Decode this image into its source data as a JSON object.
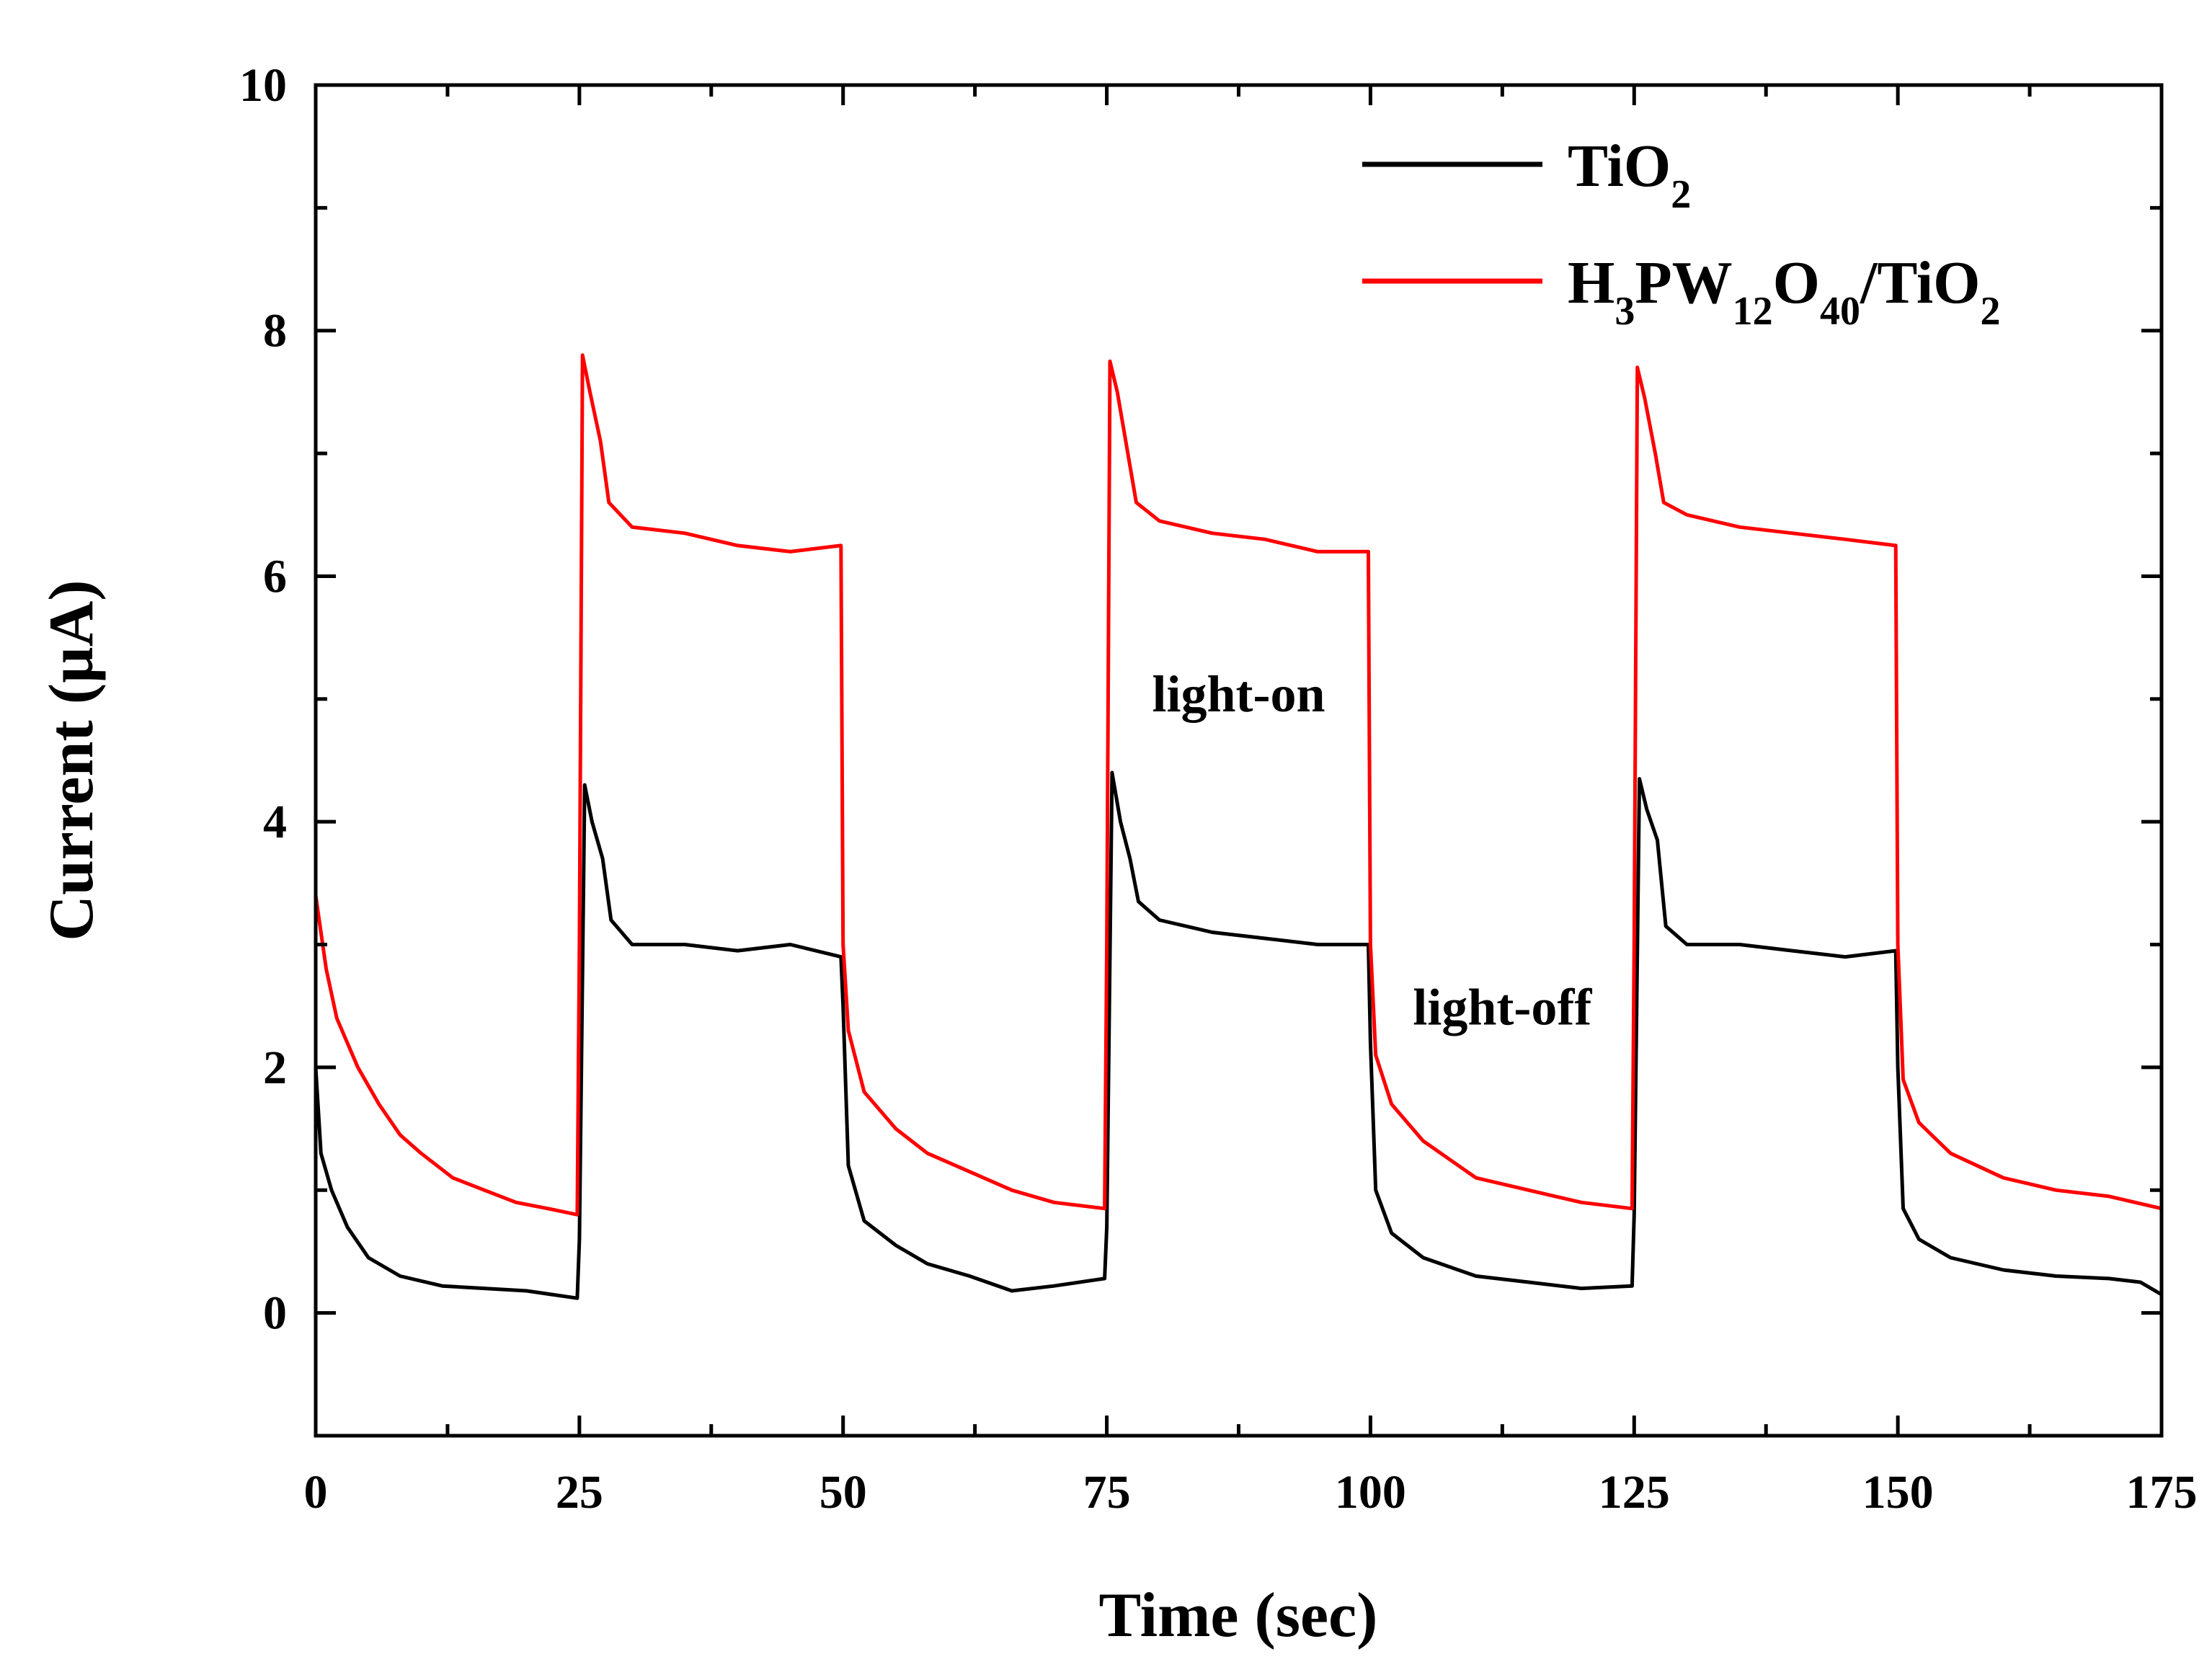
{
  "chart_data": {
    "type": "line",
    "title": "",
    "xlabel": "Time (sec)",
    "ylabel": "Current (µA)",
    "xlim": [
      0,
      175
    ],
    "ylim": [
      -1,
      10
    ],
    "x_ticks": [
      0,
      25,
      50,
      75,
      100,
      125,
      150,
      175
    ],
    "y_ticks": [
      0,
      2,
      4,
      6,
      8,
      10
    ],
    "x_minor_step": 12.5,
    "y_minor_step": 1,
    "grid": false,
    "legend_position": "top-right",
    "legend": [
      {
        "series": 0,
        "base": "TiO",
        "sub": "2"
      },
      {
        "series": 1,
        "parts": [
          {
            "t": "H"
          },
          {
            "t": "3",
            "sub": true
          },
          {
            "t": "PW"
          },
          {
            "t": "12",
            "sub": true
          },
          {
            "t": "O"
          },
          {
            "t": "40",
            "sub": true
          },
          {
            "t": "/TiO"
          },
          {
            "t": "2",
            "sub": true
          }
        ]
      }
    ],
    "annotations": [
      {
        "text": "light-on",
        "x": 87.5,
        "y": 4.9
      },
      {
        "text": "light-off",
        "x": 112.5,
        "y": 2.35
      }
    ],
    "series": [
      {
        "name": "TiO2",
        "color": "#000000",
        "points": [
          [
            0,
            2.0
          ],
          [
            0.5,
            1.3
          ],
          [
            1.5,
            1.0
          ],
          [
            3,
            0.7
          ],
          [
            5,
            0.45
          ],
          [
            8,
            0.3
          ],
          [
            12,
            0.22
          ],
          [
            16,
            0.2
          ],
          [
            20,
            0.18
          ],
          [
            24.8,
            0.12
          ],
          [
            25,
            0.6
          ],
          [
            25.5,
            4.3
          ],
          [
            26.2,
            4.0
          ],
          [
            27.2,
            3.7
          ],
          [
            28,
            3.2
          ],
          [
            30,
            3.0
          ],
          [
            35,
            3.0
          ],
          [
            40,
            2.95
          ],
          [
            45,
            3.0
          ],
          [
            49.8,
            2.9
          ],
          [
            50,
            2.5
          ],
          [
            50.5,
            1.2
          ],
          [
            52,
            0.75
          ],
          [
            55,
            0.55
          ],
          [
            58,
            0.4
          ],
          [
            62,
            0.3
          ],
          [
            66,
            0.18
          ],
          [
            70,
            0.22
          ],
          [
            74.8,
            0.28
          ],
          [
            75,
            0.7
          ],
          [
            75.5,
            4.4
          ],
          [
            76.3,
            4.0
          ],
          [
            77.2,
            3.7
          ],
          [
            78,
            3.35
          ],
          [
            80,
            3.2
          ],
          [
            85,
            3.1
          ],
          [
            90,
            3.05
          ],
          [
            95,
            3.0
          ],
          [
            99.8,
            3.0
          ],
          [
            100,
            2.2
          ],
          [
            100.5,
            1.0
          ],
          [
            102,
            0.65
          ],
          [
            105,
            0.45
          ],
          [
            110,
            0.3
          ],
          [
            115,
            0.25
          ],
          [
            120,
            0.2
          ],
          [
            124.8,
            0.22
          ],
          [
            125,
            0.8
          ],
          [
            125.5,
            4.35
          ],
          [
            126.2,
            4.1
          ],
          [
            127.2,
            3.85
          ],
          [
            128,
            3.15
          ],
          [
            130,
            3.0
          ],
          [
            135,
            3.0
          ],
          [
            140,
            2.95
          ],
          [
            145,
            2.9
          ],
          [
            149.8,
            2.95
          ],
          [
            150,
            2.0
          ],
          [
            150.5,
            0.85
          ],
          [
            152,
            0.6
          ],
          [
            155,
            0.45
          ],
          [
            160,
            0.35
          ],
          [
            165,
            0.3
          ],
          [
            170,
            0.28
          ],
          [
            173,
            0.25
          ],
          [
            175,
            0.15
          ]
        ]
      },
      {
        "name": "H3PW12O40/TiO2",
        "color": "#ff0000",
        "points": [
          [
            0,
            3.4
          ],
          [
            1,
            2.8
          ],
          [
            2,
            2.4
          ],
          [
            4,
            2.0
          ],
          [
            6,
            1.7
          ],
          [
            8,
            1.45
          ],
          [
            10,
            1.3
          ],
          [
            13,
            1.1
          ],
          [
            16,
            1.0
          ],
          [
            19,
            0.9
          ],
          [
            22,
            0.85
          ],
          [
            24.8,
            0.8
          ],
          [
            25,
            3.0
          ],
          [
            25.3,
            7.8
          ],
          [
            26,
            7.5
          ],
          [
            27,
            7.1
          ],
          [
            27.8,
            6.6
          ],
          [
            30,
            6.4
          ],
          [
            35,
            6.35
          ],
          [
            40,
            6.25
          ],
          [
            45,
            6.2
          ],
          [
            49.8,
            6.25
          ],
          [
            50,
            3.0
          ],
          [
            50.5,
            2.3
          ],
          [
            52,
            1.8
          ],
          [
            55,
            1.5
          ],
          [
            58,
            1.3
          ],
          [
            62,
            1.15
          ],
          [
            66,
            1.0
          ],
          [
            70,
            0.9
          ],
          [
            74.8,
            0.85
          ],
          [
            75,
            3.0
          ],
          [
            75.3,
            7.75
          ],
          [
            76,
            7.5
          ],
          [
            77,
            7.0
          ],
          [
            77.8,
            6.6
          ],
          [
            80,
            6.45
          ],
          [
            85,
            6.35
          ],
          [
            90,
            6.3
          ],
          [
            95,
            6.2
          ],
          [
            99.8,
            6.2
          ],
          [
            100,
            3.0
          ],
          [
            100.5,
            2.1
          ],
          [
            102,
            1.7
          ],
          [
            105,
            1.4
          ],
          [
            110,
            1.1
          ],
          [
            115,
            1.0
          ],
          [
            120,
            0.9
          ],
          [
            124.8,
            0.85
          ],
          [
            125,
            3.0
          ],
          [
            125.3,
            7.7
          ],
          [
            126,
            7.45
          ],
          [
            127,
            7.0
          ],
          [
            127.8,
            6.6
          ],
          [
            130,
            6.5
          ],
          [
            135,
            6.4
          ],
          [
            140,
            6.35
          ],
          [
            145,
            6.3
          ],
          [
            149.8,
            6.25
          ],
          [
            150,
            3.0
          ],
          [
            150.5,
            1.9
          ],
          [
            152,
            1.55
          ],
          [
            155,
            1.3
          ],
          [
            160,
            1.1
          ],
          [
            165,
            1.0
          ],
          [
            170,
            0.95
          ],
          [
            175,
            0.85
          ]
        ]
      }
    ]
  }
}
